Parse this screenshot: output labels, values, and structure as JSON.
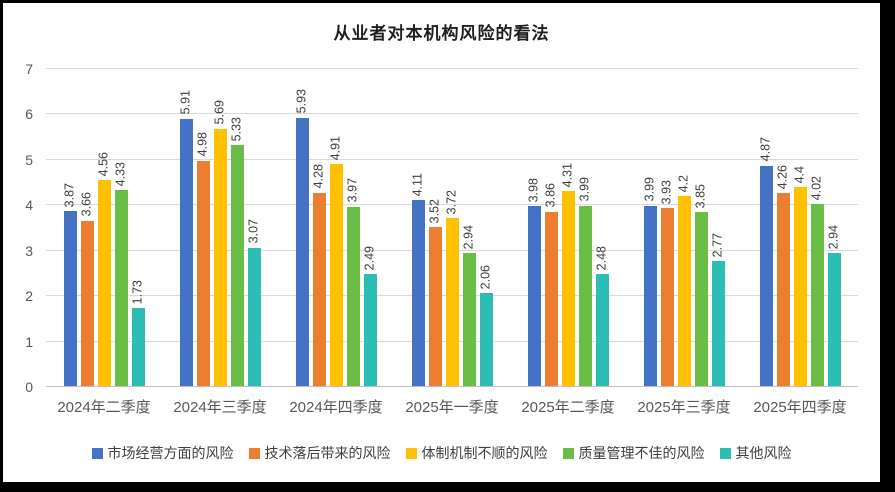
{
  "frame": {
    "outer_background": "#000000",
    "chart_background": "#ffffff"
  },
  "chart_data": {
    "type": "bar",
    "title": "从业者对本机构风险的看法",
    "categories": [
      "2024年二季度",
      "2024年三季度",
      "2024年四季度",
      "2025年一季度",
      "2025年二季度",
      "2025年三季度",
      "2025年四季度"
    ],
    "series": [
      {
        "name": "市场经营方面的风险",
        "color": "#4472C4",
        "values": [
          3.87,
          5.91,
          5.93,
          4.11,
          3.98,
          3.99,
          4.87
        ]
      },
      {
        "name": "技术落后带来的风险",
        "color": "#ED7D31",
        "values": [
          3.66,
          4.98,
          4.28,
          3.52,
          3.86,
          3.93,
          4.26
        ]
      },
      {
        "name": "体制机制不顺的风险",
        "color": "#FFC000",
        "values": [
          4.56,
          5.69,
          4.91,
          3.72,
          4.31,
          4.2,
          4.4
        ]
      },
      {
        "name": "质量管理不佳的风险",
        "color": "#6ABD45",
        "values": [
          4.33,
          5.33,
          3.97,
          2.94,
          3.99,
          3.85,
          4.02
        ]
      },
      {
        "name": "其他风险",
        "color": "#2CBEB4",
        "values": [
          1.73,
          3.07,
          2.49,
          2.06,
          2.48,
          2.77,
          2.94
        ]
      }
    ],
    "ylim": [
      0,
      7
    ],
    "y_ticks": [
      0,
      1,
      2,
      3,
      4,
      5,
      6,
      7
    ],
    "grid": true,
    "data_labels": true,
    "data_label_rotation": "vertical",
    "legend_position": "bottom",
    "gridline_color": "#d9d9d9",
    "axis_line_color": "#bfbfbf",
    "tick_label_color": "#595959",
    "data_label_color": "#404040"
  }
}
